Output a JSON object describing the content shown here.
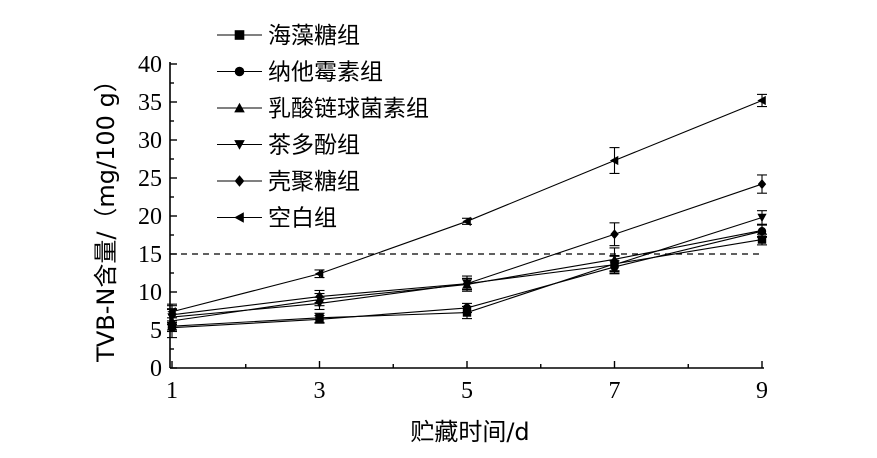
{
  "chart_data": {
    "type": "line",
    "xlabel": "贮藏时间/d",
    "ylabel": "TVB-N含量/（mg/100 g）",
    "x": [
      1,
      3,
      5,
      7,
      9
    ],
    "xlim": [
      1,
      9
    ],
    "ylim": [
      0,
      40
    ],
    "xticks": [
      "1",
      "3",
      "5",
      "7",
      "9"
    ],
    "yticks": [
      "0",
      "5",
      "10",
      "15",
      "20",
      "25",
      "30",
      "35",
      "40"
    ],
    "reference_line": {
      "y": 15,
      "style": "dashed"
    },
    "legend_position": "top-left",
    "grid": false,
    "series": [
      {
        "name": "海藻糖组",
        "marker": "square",
        "values": [
          5.5,
          6.6,
          7.3,
          13.7,
          16.9
        ],
        "errors": [
          0.5,
          0.6,
          0.8,
          1.0,
          0.7
        ]
      },
      {
        "name": "纳他霉素组",
        "marker": "circle",
        "values": [
          5.3,
          6.4,
          7.9,
          13.3,
          18.0
        ],
        "errors": [
          0.5,
          0.5,
          0.6,
          0.8,
          0.8
        ]
      },
      {
        "name": "乳酸链球菌素组",
        "marker": "triangle-up",
        "values": [
          6.2,
          9.0,
          11.0,
          14.3,
          18.1
        ],
        "errors": [
          2.2,
          0.8,
          0.7,
          1.5,
          0.8
        ]
      },
      {
        "name": "茶多酚组",
        "marker": "triangle-down",
        "values": [
          6.7,
          8.5,
          11.1,
          13.6,
          19.8
        ],
        "errors": [
          1.0,
          0.8,
          0.7,
          1.2,
          0.9
        ]
      },
      {
        "name": "壳聚糖组",
        "marker": "diamond",
        "values": [
          7.0,
          9.4,
          11.1,
          17.6,
          24.2
        ],
        "errors": [
          0.8,
          0.8,
          1.0,
          1.5,
          1.2
        ]
      },
      {
        "name": "空白组",
        "marker": "triangle-left",
        "values": [
          7.4,
          12.4,
          19.3,
          27.3,
          35.2
        ],
        "errors": [
          0.8,
          0.5,
          0.4,
          1.7,
          0.8
        ]
      }
    ]
  }
}
